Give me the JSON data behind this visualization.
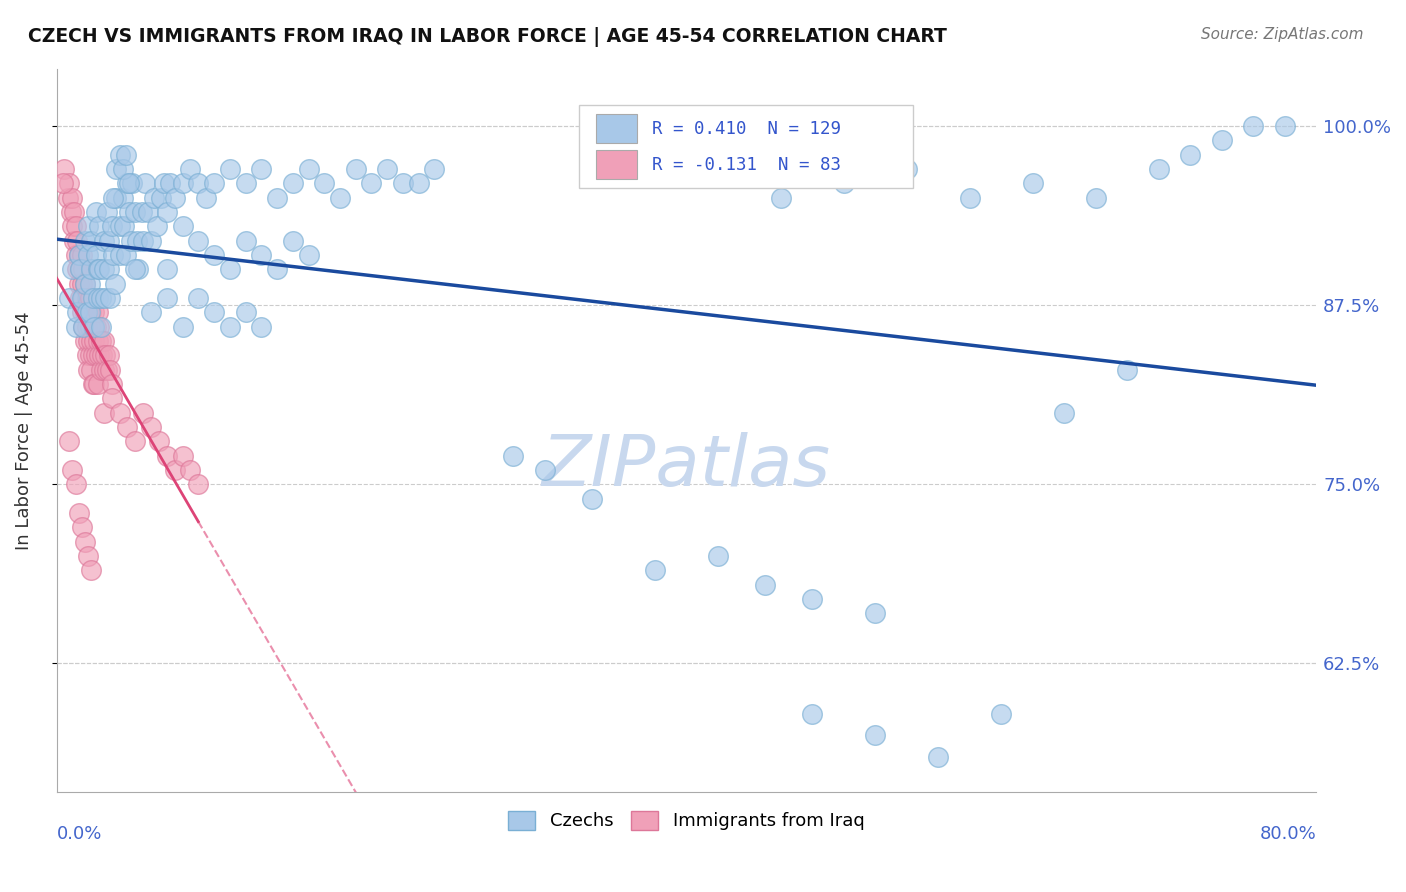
{
  "title": "CZECH VS IMMIGRANTS FROM IRAQ IN LABOR FORCE | AGE 45-54 CORRELATION CHART",
  "source": "Source: ZipAtlas.com",
  "ylabel": "In Labor Force | Age 45-54",
  "xlim": [
    0.0,
    0.8
  ],
  "ylim": [
    0.535,
    1.04
  ],
  "yticks": [
    0.625,
    0.75,
    0.875,
    1.0
  ],
  "ytick_labels": [
    "62.5%",
    "75.0%",
    "87.5%",
    "100.0%"
  ],
  "czech_R": 0.41,
  "czech_N": 129,
  "iraq_R": -0.131,
  "iraq_N": 83,
  "czech_color": "#a8c8e8",
  "czech_edge_color": "#7aafd4",
  "czech_line_color": "#1a4a9e",
  "iraq_color": "#f0a0b8",
  "iraq_edge_color": "#dd7799",
  "iraq_line_color": "#dd4477",
  "watermark_color": "#c8d8ee",
  "czech_scatter": [
    [
      0.008,
      0.88
    ],
    [
      0.01,
      0.9
    ],
    [
      0.012,
      0.86
    ],
    [
      0.013,
      0.87
    ],
    [
      0.014,
      0.91
    ],
    [
      0.015,
      0.9
    ],
    [
      0.016,
      0.88
    ],
    [
      0.017,
      0.86
    ],
    [
      0.018,
      0.92
    ],
    [
      0.018,
      0.89
    ],
    [
      0.019,
      0.87
    ],
    [
      0.02,
      0.93
    ],
    [
      0.02,
      0.91
    ],
    [
      0.021,
      0.89
    ],
    [
      0.021,
      0.87
    ],
    [
      0.022,
      0.92
    ],
    [
      0.022,
      0.9
    ],
    [
      0.023,
      0.88
    ],
    [
      0.024,
      0.86
    ],
    [
      0.025,
      0.94
    ],
    [
      0.025,
      0.91
    ],
    [
      0.026,
      0.9
    ],
    [
      0.026,
      0.88
    ],
    [
      0.027,
      0.93
    ],
    [
      0.027,
      0.9
    ],
    [
      0.028,
      0.88
    ],
    [
      0.028,
      0.86
    ],
    [
      0.03,
      0.92
    ],
    [
      0.03,
      0.9
    ],
    [
      0.031,
      0.88
    ],
    [
      0.032,
      0.94
    ],
    [
      0.033,
      0.92
    ],
    [
      0.033,
      0.9
    ],
    [
      0.034,
      0.88
    ],
    [
      0.035,
      0.93
    ],
    [
      0.036,
      0.91
    ],
    [
      0.037,
      0.89
    ],
    [
      0.038,
      0.95
    ],
    [
      0.04,
      0.93
    ],
    [
      0.04,
      0.91
    ],
    [
      0.042,
      0.95
    ],
    [
      0.043,
      0.93
    ],
    [
      0.044,
      0.91
    ],
    [
      0.045,
      0.96
    ],
    [
      0.046,
      0.94
    ],
    [
      0.047,
      0.92
    ],
    [
      0.048,
      0.96
    ],
    [
      0.05,
      0.94
    ],
    [
      0.051,
      0.92
    ],
    [
      0.052,
      0.9
    ],
    [
      0.054,
      0.94
    ],
    [
      0.055,
      0.92
    ],
    [
      0.056,
      0.96
    ],
    [
      0.058,
      0.94
    ],
    [
      0.06,
      0.92
    ],
    [
      0.062,
      0.95
    ],
    [
      0.064,
      0.93
    ],
    [
      0.066,
      0.95
    ],
    [
      0.068,
      0.96
    ],
    [
      0.07,
      0.94
    ],
    [
      0.072,
      0.96
    ],
    [
      0.075,
      0.95
    ],
    [
      0.08,
      0.96
    ],
    [
      0.085,
      0.97
    ],
    [
      0.09,
      0.96
    ],
    [
      0.095,
      0.95
    ],
    [
      0.1,
      0.96
    ],
    [
      0.11,
      0.97
    ],
    [
      0.12,
      0.96
    ],
    [
      0.13,
      0.97
    ],
    [
      0.14,
      0.95
    ],
    [
      0.15,
      0.96
    ],
    [
      0.16,
      0.97
    ],
    [
      0.17,
      0.96
    ],
    [
      0.18,
      0.95
    ],
    [
      0.19,
      0.97
    ],
    [
      0.2,
      0.96
    ],
    [
      0.21,
      0.97
    ],
    [
      0.22,
      0.96
    ],
    [
      0.23,
      0.96
    ],
    [
      0.24,
      0.97
    ],
    [
      0.05,
      0.9
    ],
    [
      0.06,
      0.87
    ],
    [
      0.07,
      0.9
    ],
    [
      0.08,
      0.93
    ],
    [
      0.09,
      0.92
    ],
    [
      0.1,
      0.91
    ],
    [
      0.11,
      0.9
    ],
    [
      0.12,
      0.92
    ],
    [
      0.13,
      0.91
    ],
    [
      0.14,
      0.9
    ],
    [
      0.15,
      0.92
    ],
    [
      0.16,
      0.91
    ],
    [
      0.07,
      0.88
    ],
    [
      0.08,
      0.86
    ],
    [
      0.09,
      0.88
    ],
    [
      0.1,
      0.87
    ],
    [
      0.11,
      0.86
    ],
    [
      0.12,
      0.87
    ],
    [
      0.13,
      0.86
    ],
    [
      0.036,
      0.95
    ],
    [
      0.038,
      0.97
    ],
    [
      0.04,
      0.98
    ],
    [
      0.042,
      0.97
    ],
    [
      0.044,
      0.98
    ],
    [
      0.046,
      0.96
    ],
    [
      0.29,
      0.77
    ],
    [
      0.31,
      0.76
    ],
    [
      0.34,
      0.74
    ],
    [
      0.38,
      0.69
    ],
    [
      0.42,
      0.7
    ],
    [
      0.45,
      0.68
    ],
    [
      0.48,
      0.67
    ],
    [
      0.52,
      0.66
    ],
    [
      0.48,
      0.59
    ],
    [
      0.52,
      0.575
    ],
    [
      0.56,
      0.56
    ],
    [
      0.6,
      0.59
    ],
    [
      0.64,
      0.8
    ],
    [
      0.68,
      0.83
    ],
    [
      0.7,
      0.97
    ],
    [
      0.72,
      0.98
    ],
    [
      0.74,
      0.99
    ],
    [
      0.76,
      1.0
    ],
    [
      0.78,
      1.0
    ],
    [
      0.66,
      0.95
    ],
    [
      0.62,
      0.96
    ],
    [
      0.58,
      0.95
    ],
    [
      0.54,
      0.97
    ],
    [
      0.5,
      0.96
    ],
    [
      0.46,
      0.95
    ]
  ],
  "iraq_scatter": [
    [
      0.005,
      0.97
    ],
    [
      0.007,
      0.95
    ],
    [
      0.008,
      0.96
    ],
    [
      0.009,
      0.94
    ],
    [
      0.01,
      0.95
    ],
    [
      0.01,
      0.93
    ],
    [
      0.011,
      0.94
    ],
    [
      0.011,
      0.92
    ],
    [
      0.012,
      0.93
    ],
    [
      0.012,
      0.91
    ],
    [
      0.013,
      0.92
    ],
    [
      0.013,
      0.9
    ],
    [
      0.014,
      0.91
    ],
    [
      0.014,
      0.89
    ],
    [
      0.015,
      0.9
    ],
    [
      0.015,
      0.88
    ],
    [
      0.016,
      0.91
    ],
    [
      0.016,
      0.89
    ],
    [
      0.016,
      0.87
    ],
    [
      0.017,
      0.9
    ],
    [
      0.017,
      0.88
    ],
    [
      0.017,
      0.86
    ],
    [
      0.018,
      0.89
    ],
    [
      0.018,
      0.87
    ],
    [
      0.018,
      0.85
    ],
    [
      0.019,
      0.88
    ],
    [
      0.019,
      0.86
    ],
    [
      0.019,
      0.84
    ],
    [
      0.02,
      0.87
    ],
    [
      0.02,
      0.85
    ],
    [
      0.02,
      0.83
    ],
    [
      0.021,
      0.88
    ],
    [
      0.021,
      0.86
    ],
    [
      0.021,
      0.84
    ],
    [
      0.022,
      0.87
    ],
    [
      0.022,
      0.85
    ],
    [
      0.022,
      0.83
    ],
    [
      0.023,
      0.86
    ],
    [
      0.023,
      0.84
    ],
    [
      0.023,
      0.82
    ],
    [
      0.024,
      0.87
    ],
    [
      0.024,
      0.85
    ],
    [
      0.024,
      0.82
    ],
    [
      0.025,
      0.86
    ],
    [
      0.025,
      0.84
    ],
    [
      0.026,
      0.87
    ],
    [
      0.026,
      0.85
    ],
    [
      0.026,
      0.82
    ],
    [
      0.027,
      0.86
    ],
    [
      0.027,
      0.84
    ],
    [
      0.028,
      0.85
    ],
    [
      0.028,
      0.83
    ],
    [
      0.029,
      0.84
    ],
    [
      0.03,
      0.85
    ],
    [
      0.03,
      0.83
    ],
    [
      0.031,
      0.84
    ],
    [
      0.032,
      0.83
    ],
    [
      0.033,
      0.84
    ],
    [
      0.034,
      0.83
    ],
    [
      0.035,
      0.82
    ],
    [
      0.008,
      0.78
    ],
    [
      0.01,
      0.76
    ],
    [
      0.012,
      0.75
    ],
    [
      0.014,
      0.73
    ],
    [
      0.016,
      0.72
    ],
    [
      0.018,
      0.71
    ],
    [
      0.02,
      0.7
    ],
    [
      0.022,
      0.69
    ],
    [
      0.03,
      0.8
    ],
    [
      0.035,
      0.81
    ],
    [
      0.04,
      0.8
    ],
    [
      0.045,
      0.79
    ],
    [
      0.05,
      0.78
    ],
    [
      0.055,
      0.8
    ],
    [
      0.06,
      0.79
    ],
    [
      0.065,
      0.78
    ],
    [
      0.07,
      0.77
    ],
    [
      0.075,
      0.76
    ],
    [
      0.08,
      0.77
    ],
    [
      0.085,
      0.76
    ],
    [
      0.09,
      0.75
    ],
    [
      0.004,
      0.96
    ]
  ]
}
